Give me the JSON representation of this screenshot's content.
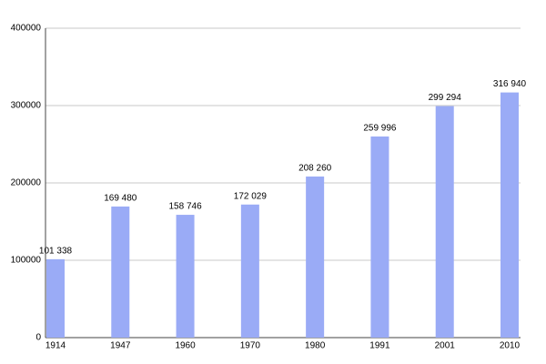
{
  "chart_data": {
    "type": "bar",
    "categories": [
      "1914",
      "1947",
      "1960",
      "1970",
      "1980",
      "1991",
      "2001",
      "2010"
    ],
    "values": [
      101338,
      169480,
      158746,
      172029,
      208260,
      259996,
      299294,
      316940
    ],
    "value_labels": [
      "101 338",
      "169 480",
      "158 746",
      "172 029",
      "208 260",
      "259 996",
      "299 294",
      "316 940"
    ],
    "color": "#9aabf6",
    "ylim": [
      0,
      400000
    ],
    "yticks": [
      0,
      100000,
      200000,
      300000,
      400000
    ],
    "grid": true
  }
}
